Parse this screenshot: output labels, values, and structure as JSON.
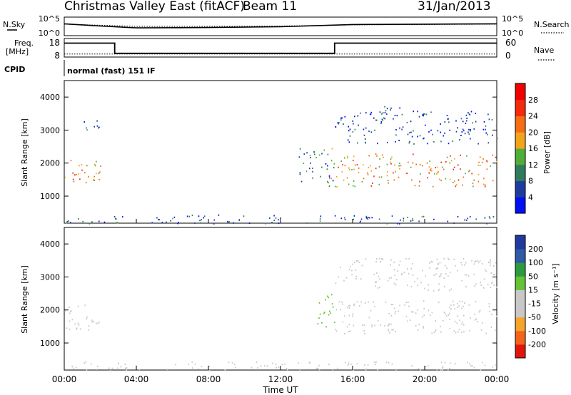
{
  "header": {
    "station": "Christmas Valley East (fitACF)",
    "beam": "Beam 11",
    "date": "31/Jan/2013"
  },
  "top_panel": {
    "left_label": "N.Sky",
    "right_label": "N.Search",
    "left_ticks": [
      "10^5",
      "10^0"
    ],
    "right_ticks": [
      "10^5",
      "10^0"
    ]
  },
  "freq_panel": {
    "left_label_line1": "Freq.",
    "left_label_line2": "[MHz]",
    "right_label": "Nave",
    "left_ticks": [
      "18",
      "8"
    ],
    "right_ticks": [
      "60",
      "0"
    ]
  },
  "cpid": {
    "label": "CPID",
    "value": "normal (fast) 151 IF"
  },
  "xlabel": "Time UT",
  "x_ticks": [
    "00:00",
    "04:00",
    "08:00",
    "12:00",
    "16:00",
    "20:00",
    "00:00"
  ],
  "colors": {
    "power_scale": [
      "#0010f0",
      "#1e3ca0",
      "#2f7c5c",
      "#4fae3a",
      "#f3a41b",
      "#f66e12",
      "#f52a0c",
      "#f00000"
    ],
    "velocity_scale": [
      "#e0160c",
      "#f4631a",
      "#f5a42c",
      "#c8c8c8",
      "#c8c8c8",
      "#66c237",
      "#2d9a3f",
      "#2f5aa6",
      "#1f3a9f"
    ]
  },
  "chart_data": [
    {
      "type": "line",
      "title": "N.Sky / N.Search",
      "x": [
        0,
        2,
        4,
        8,
        12,
        16,
        20,
        24
      ],
      "series": [
        {
          "name": "N.Sky",
          "values": [
            3.2,
            2.6,
            2.1,
            2.2,
            2.4,
            3.0,
            3.1,
            3.2
          ]
        },
        {
          "name": "N.Search",
          "values": [
            3.1,
            2.8,
            2.5,
            2.5,
            2.6,
            2.9,
            3.0,
            3.1
          ]
        }
      ],
      "ylim": [
        0,
        5
      ]
    },
    {
      "type": "line",
      "title": "Freq. / Nave",
      "x": [
        0.0,
        2.8,
        2.8,
        15.0,
        15.0,
        24.0
      ],
      "series": [
        {
          "name": "Freq.",
          "values": [
            15.5,
            15.5,
            10.0,
            10.0,
            15.5,
            15.5
          ]
        },
        {
          "name": "Nave",
          "values": [
            10,
            10,
            10,
            10,
            10,
            10
          ]
        }
      ],
      "ylim": [
        8,
        18
      ]
    },
    {
      "type": "heatmap",
      "title": "Power [dB]",
      "ylabel": "Slant Range [km]",
      "xlabel": "Time UT",
      "xlim": [
        0,
        24
      ],
      "ylim": [
        180,
        4500
      ],
      "y_ticks": [
        1000,
        2000,
        3000,
        4000
      ],
      "colorbar_ticks": [
        4,
        8,
        12,
        16,
        20,
        24,
        28
      ],
      "colorbar_label": "Power [dB]",
      "scatter_regions": [
        {
          "t0": 0.0,
          "t1": 2.0,
          "r0": 1350,
          "r1": 2200,
          "value": 20
        },
        {
          "t0": 1.0,
          "t1": 2.0,
          "r0": 2800,
          "r1": 3300,
          "value": 8
        },
        {
          "t0": 0.0,
          "t1": 24.0,
          "r0": 180,
          "r1": 450,
          "value": 6
        },
        {
          "t0": 13.0,
          "t1": 15.0,
          "r0": 1300,
          "r1": 2500,
          "value": 10
        },
        {
          "t0": 15.0,
          "t1": 24.0,
          "r0": 1300,
          "r1": 2300,
          "value": 20
        },
        {
          "t0": 15.0,
          "t1": 24.0,
          "r0": 2600,
          "r1": 3600,
          "value": 5
        },
        {
          "t0": 17.0,
          "t1": 19.0,
          "r0": 3550,
          "r1": 3750,
          "value": 4
        }
      ]
    },
    {
      "type": "heatmap",
      "title": "Velocity [m s^-1]",
      "ylabel": "Slant Range [km]",
      "xlabel": "Time UT",
      "xlim": [
        0,
        24
      ],
      "ylim": [
        180,
        4500
      ],
      "y_ticks": [
        1000,
        2000,
        3000,
        4000
      ],
      "colorbar_ticks": [
        -200,
        -100,
        -50,
        -15,
        15,
        50,
        100,
        200
      ],
      "colorbar_label": "Velocity [m s⁻¹]",
      "scatter_regions": [
        {
          "t0": 0.0,
          "t1": 2.0,
          "r0": 1350,
          "r1": 2200,
          "value": 0
        },
        {
          "t0": 0.0,
          "t1": 24.0,
          "r0": 180,
          "r1": 450,
          "value": -40
        },
        {
          "t0": 14.0,
          "t1": 15.0,
          "r0": 1400,
          "r1": 2500,
          "value": 30
        },
        {
          "t0": 15.0,
          "t1": 24.0,
          "r0": 1300,
          "r1": 2300,
          "value": 0
        },
        {
          "t0": 15.0,
          "t1": 24.0,
          "r0": 2600,
          "r1": 3600,
          "value": 0
        }
      ]
    }
  ]
}
